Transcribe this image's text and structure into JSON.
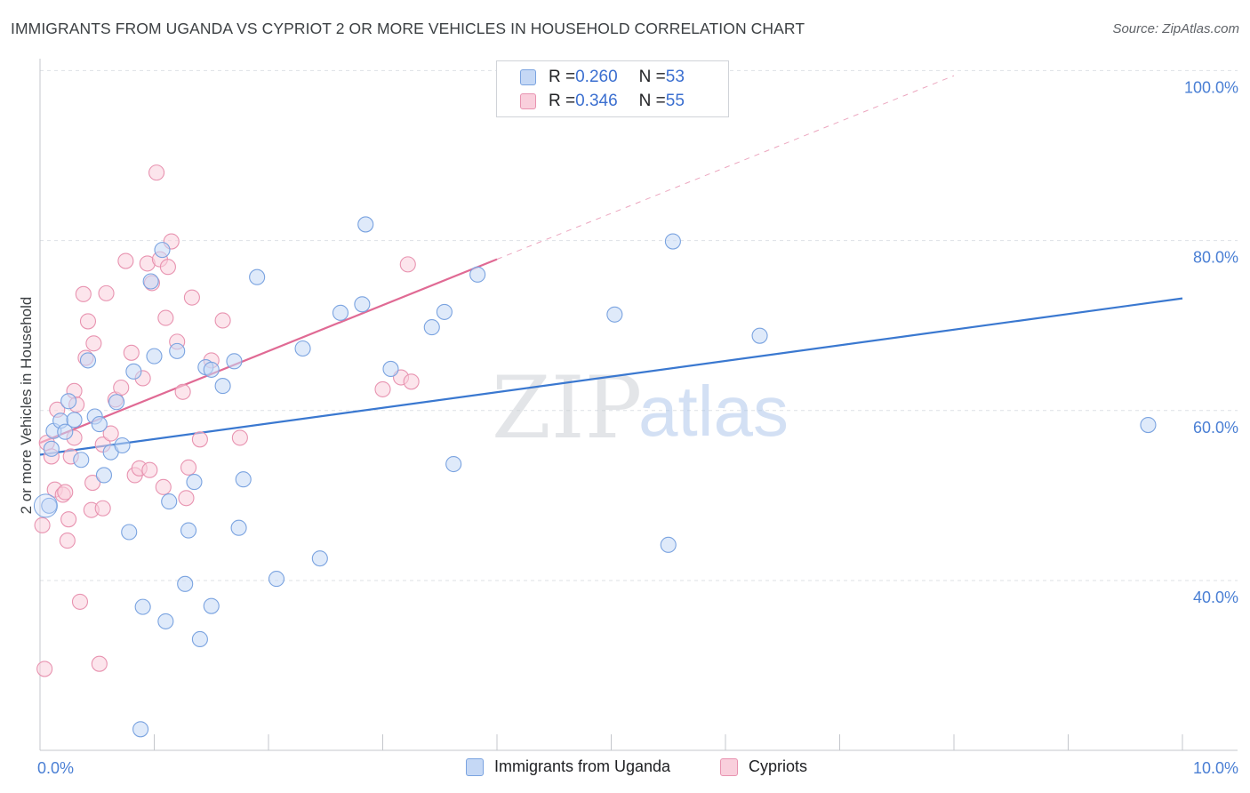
{
  "header": {
    "title": "IMMIGRANTS FROM UGANDA VS CYPRIOT 2 OR MORE VEHICLES IN HOUSEHOLD CORRELATION CHART",
    "source": "Source: ZipAtlas.com"
  },
  "watermark": {
    "zip": "ZIP",
    "atlas": "atlas"
  },
  "legend": {
    "series1": {
      "r_label": "R = ",
      "r_value": "0.260",
      "n_label": "N = ",
      "n_value": "53"
    },
    "series2": {
      "r_label": "R = ",
      "r_value": "0.346",
      "n_label": "N = ",
      "n_value": "55"
    }
  },
  "colors": {
    "blue_fill": "#c5d8f5",
    "blue_stroke": "#7aa3e0",
    "blue_line": "#3a78d0",
    "pink_fill": "#f9cfdc",
    "pink_stroke": "#e893b0",
    "pink_line": "#e06a94",
    "tick_text": "#4a7fd4",
    "grid": "#dde1e6"
  },
  "chart_data": {
    "type": "scatter",
    "title": "IMMIGRANTS FROM UGANDA VS CYPRIOT 2 OR MORE VEHICLES IN HOUSEHOLD CORRELATION CHART",
    "xlabel": "",
    "ylabel": "2 or more Vehicles in Household",
    "xlim": [
      0,
      10
    ],
    "ylim": [
      20,
      102
    ],
    "x_tick_labels": [
      "0.0%",
      "10.0%"
    ],
    "y_ticks": [
      40,
      60,
      80,
      100
    ],
    "y_tick_labels": [
      "40.0%",
      "60.0%",
      "80.0%",
      "100.0%"
    ],
    "series": [
      {
        "name": "Immigrants from Uganda",
        "color": "#7aa3e0",
        "trend": {
          "x": [
            0,
            10
          ],
          "y": [
            54.8,
            73.2
          ],
          "dashed_extension": false
        },
        "points": [
          [
            0.08,
            48.8
          ],
          [
            0.1,
            55.5
          ],
          [
            0.12,
            57.6
          ],
          [
            0.18,
            58.8
          ],
          [
            0.22,
            57.5
          ],
          [
            0.25,
            61.1
          ],
          [
            0.3,
            58.9
          ],
          [
            0.36,
            54.2
          ],
          [
            0.42,
            65.9
          ],
          [
            0.48,
            59.3
          ],
          [
            0.52,
            58.4
          ],
          [
            0.56,
            52.4
          ],
          [
            0.62,
            55.1
          ],
          [
            0.67,
            61.0
          ],
          [
            0.72,
            55.9
          ],
          [
            0.78,
            45.7
          ],
          [
            0.82,
            64.6
          ],
          [
            0.88,
            22.5
          ],
          [
            0.9,
            36.9
          ],
          [
            0.97,
            75.2
          ],
          [
            1.0,
            66.4
          ],
          [
            1.07,
            78.9
          ],
          [
            1.1,
            35.2
          ],
          [
            1.13,
            49.3
          ],
          [
            1.2,
            67.0
          ],
          [
            1.27,
            39.6
          ],
          [
            1.3,
            45.9
          ],
          [
            1.35,
            51.6
          ],
          [
            1.4,
            33.1
          ],
          [
            1.45,
            65.1
          ],
          [
            1.5,
            37.0
          ],
          [
            1.5,
            64.8
          ],
          [
            1.6,
            62.9
          ],
          [
            1.7,
            65.8
          ],
          [
            1.74,
            46.2
          ],
          [
            1.78,
            51.9
          ],
          [
            1.9,
            75.7
          ],
          [
            2.07,
            40.2
          ],
          [
            2.3,
            67.3
          ],
          [
            2.45,
            42.6
          ],
          [
            2.63,
            71.5
          ],
          [
            2.82,
            72.5
          ],
          [
            2.85,
            81.9
          ],
          [
            3.07,
            64.9
          ],
          [
            3.43,
            69.8
          ],
          [
            3.54,
            71.6
          ],
          [
            3.62,
            53.7
          ],
          [
            3.83,
            76.0
          ],
          [
            5.03,
            71.3
          ],
          [
            5.5,
            44.2
          ],
          [
            5.54,
            79.9
          ],
          [
            6.3,
            68.8
          ],
          [
            9.7,
            58.3
          ]
        ]
      },
      {
        "name": "Cypriots",
        "color": "#e893b0",
        "trend": {
          "x": [
            0,
            4.0
          ],
          "y": [
            56.2,
            77.8
          ],
          "dashed_to": [
            8.0,
            99.4
          ],
          "dashed_extension": true
        },
        "points": [
          [
            0.02,
            46.5
          ],
          [
            0.04,
            29.6
          ],
          [
            0.06,
            56.2
          ],
          [
            0.1,
            54.6
          ],
          [
            0.13,
            50.7
          ],
          [
            0.15,
            60.1
          ],
          [
            0.2,
            50.1
          ],
          [
            0.22,
            50.4
          ],
          [
            0.24,
            44.7
          ],
          [
            0.25,
            47.2
          ],
          [
            0.27,
            54.6
          ],
          [
            0.3,
            56.8
          ],
          [
            0.3,
            62.3
          ],
          [
            0.32,
            60.7
          ],
          [
            0.35,
            37.5
          ],
          [
            0.38,
            73.7
          ],
          [
            0.4,
            66.2
          ],
          [
            0.42,
            70.5
          ],
          [
            0.45,
            48.3
          ],
          [
            0.46,
            51.5
          ],
          [
            0.47,
            67.9
          ],
          [
            0.52,
            30.2
          ],
          [
            0.55,
            56.0
          ],
          [
            0.58,
            73.8
          ],
          [
            0.62,
            57.3
          ],
          [
            0.66,
            61.3
          ],
          [
            0.71,
            62.7
          ],
          [
            0.75,
            77.6
          ],
          [
            0.8,
            66.8
          ],
          [
            0.83,
            52.4
          ],
          [
            0.87,
            53.2
          ],
          [
            0.9,
            63.8
          ],
          [
            0.94,
            77.3
          ],
          [
            0.96,
            53.0
          ],
          [
            0.98,
            75.0
          ],
          [
            1.02,
            88.0
          ],
          [
            1.05,
            77.8
          ],
          [
            1.08,
            51.0
          ],
          [
            1.1,
            70.9
          ],
          [
            1.12,
            76.9
          ],
          [
            1.15,
            79.9
          ],
          [
            1.2,
            68.1
          ],
          [
            1.25,
            62.2
          ],
          [
            1.28,
            49.7
          ],
          [
            1.3,
            53.3
          ],
          [
            1.33,
            73.3
          ],
          [
            1.4,
            56.6
          ],
          [
            1.5,
            65.9
          ],
          [
            1.6,
            70.6
          ],
          [
            1.75,
            56.8
          ],
          [
            3.0,
            62.5
          ],
          [
            3.16,
            63.9
          ],
          [
            3.22,
            77.2
          ],
          [
            3.25,
            63.4
          ],
          [
            0.55,
            48.5
          ]
        ]
      }
    ]
  },
  "bottom_legend": {
    "item1": "Immigrants from Uganda",
    "item2": "Cypriots"
  }
}
